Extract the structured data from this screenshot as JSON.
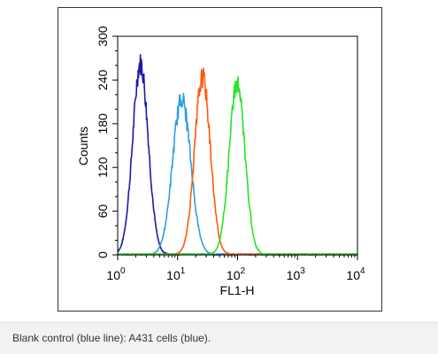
{
  "chart_data": {
    "type": "line",
    "title": "",
    "xlabel": "FL1-H",
    "ylabel": "Counts",
    "x_scale": "log",
    "xlim": [
      1,
      10000
    ],
    "ylim": [
      0,
      300
    ],
    "x_ticks": [
      {
        "base": "10",
        "exp": "0"
      },
      {
        "base": "10",
        "exp": "1"
      },
      {
        "base": "10",
        "exp": "2"
      },
      {
        "base": "10",
        "exp": "3"
      },
      {
        "base": "10",
        "exp": "4"
      }
    ],
    "x_tick_values": [
      1,
      10,
      100,
      1000,
      10000
    ],
    "y_ticks": [
      "0",
      "60",
      "120",
      "180",
      "240",
      "300"
    ],
    "y_tick_values": [
      0,
      60,
      120,
      180,
      240,
      300
    ],
    "grid": false,
    "legend": "none",
    "series": [
      {
        "color": "#1a1aa8",
        "peak_x": 2.4,
        "peak_y": 262,
        "sigma_log": 0.13
      },
      {
        "color": "#2e9ee6",
        "peak_x": 11.7,
        "peak_y": 214,
        "sigma_log": 0.15
      },
      {
        "color": "#ff5a0a",
        "peak_x": 26.0,
        "peak_y": 243,
        "sigma_log": 0.13
      },
      {
        "color": "#22e622",
        "peak_x": 98.0,
        "peak_y": 235,
        "sigma_log": 0.13
      }
    ]
  },
  "caption": {
    "text": "Blank control (blue line): A431 cells (blue)."
  }
}
